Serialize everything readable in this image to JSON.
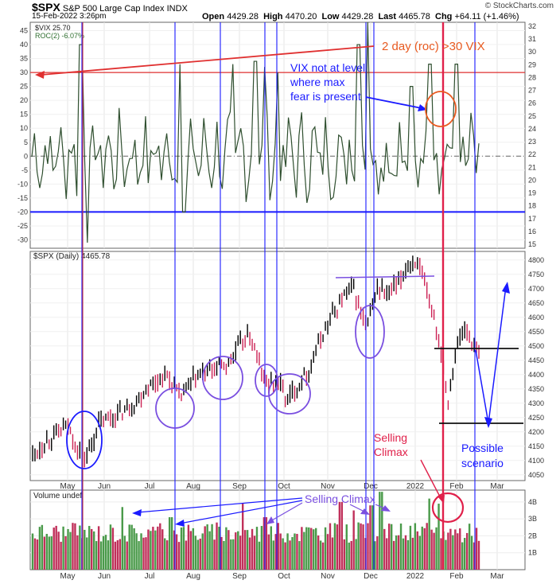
{
  "header": {
    "symbol": "$SPX",
    "name": "S&P 500 Large Cap Index",
    "exchange": "INDX",
    "date": "15-Feb-2022 3:26pm",
    "open_label": "Open",
    "open": "4429.28",
    "high_label": "High",
    "high": "4470.20",
    "low_label": "Low",
    "low": "4429.28",
    "last_label": "Last",
    "last": "4465.78",
    "chg_label": "Chg",
    "chg": "+64.11 (+1.46%)",
    "copyright": "© StockCharts.com"
  },
  "colors": {
    "roc_line": "#2f4f2f",
    "price_up": "#000000",
    "price_down": "#cc2255",
    "blue": "#1a1aff",
    "red": "#e03030",
    "purple": "#7a4fe0",
    "vol_up": "#4a9a4a",
    "vol_down": "#c0305a",
    "orange": "#e85a20"
  },
  "chart_data": [
    {
      "type": "line",
      "panel": "roc",
      "legend": [
        "$VIX 25.70",
        "ROC(2) -6.07%"
      ],
      "left_ticks": [
        45,
        40,
        35,
        30,
        25,
        20,
        15,
        10,
        5,
        0,
        -5,
        -10,
        -15,
        -20,
        -25,
        -30
      ],
      "right_ticks": [
        32,
        31,
        30,
        29,
        28,
        27,
        26,
        25,
        24,
        23,
        22,
        21,
        20,
        19,
        18,
        17,
        16,
        15
      ],
      "ylim": [
        -33,
        48
      ],
      "reference_lines": [
        {
          "value": 30,
          "color": "red"
        },
        {
          "value": -20,
          "color": "blue"
        },
        {
          "value": 0,
          "style": "dashdot"
        }
      ],
      "annotations": [
        "2 day (roc) >30 VIX",
        "VIX not at level",
        "where max",
        "fear is present"
      ],
      "peaks": [
        {
          "t": 0.11,
          "v": 40
        },
        {
          "t": 0.125,
          "v": -31
        },
        {
          "t": 0.33,
          "v": 33
        },
        {
          "t": 0.34,
          "v": -20
        },
        {
          "t": 0.45,
          "v": 33
        },
        {
          "t": 0.5,
          "v": 34
        },
        {
          "t": 0.52,
          "v": 32
        },
        {
          "t": 0.55,
          "v": 30
        },
        {
          "t": 0.73,
          "v": 40
        },
        {
          "t": 0.75,
          "v": 50
        },
        {
          "t": 0.85,
          "v": 25
        },
        {
          "t": 0.89,
          "v": 33
        },
        {
          "t": 0.95,
          "v": 33
        }
      ]
    },
    {
      "type": "line",
      "panel": "price",
      "legend": "$SPX (Daily) 4465.78",
      "right_ticks": [
        4800,
        4750,
        4700,
        4650,
        4600,
        4550,
        4500,
        4450,
        4400,
        4350,
        4300,
        4250,
        4200,
        4150,
        4100,
        4050
      ],
      "ylim": [
        4030,
        4830
      ],
      "annotations": [
        "Selling",
        "Climax",
        "Possible",
        "scenario"
      ],
      "x": [
        0,
        0.04,
        0.08,
        0.1,
        0.12,
        0.15,
        0.19,
        0.23,
        0.26,
        0.3,
        0.33,
        0.36,
        0.4,
        0.44,
        0.47,
        0.49,
        0.52,
        0.55,
        0.57,
        0.59,
        0.62,
        0.65,
        0.67,
        0.7,
        0.72,
        0.73,
        0.75,
        0.77,
        0.8,
        0.82,
        0.84,
        0.86,
        0.88,
        0.9,
        0.92,
        0.93,
        0.95,
        0.97,
        1.0
      ],
      "y": [
        4120,
        4180,
        4220,
        4140,
        4110,
        4230,
        4260,
        4300,
        4360,
        4400,
        4320,
        4380,
        4420,
        4440,
        4520,
        4530,
        4370,
        4380,
        4310,
        4350,
        4420,
        4540,
        4600,
        4680,
        4700,
        4640,
        4560,
        4700,
        4680,
        4720,
        4780,
        4800,
        4700,
        4600,
        4450,
        4300,
        4500,
        4560,
        4466
      ]
    },
    {
      "type": "bar",
      "panel": "volume",
      "legend": "Volume undef",
      "right_ticks": [
        "4B",
        "3B",
        "2B",
        "1B"
      ],
      "ylim": [
        0,
        4.7
      ],
      "annotations": [
        "Selling Climax"
      ]
    }
  ],
  "x_labels": [
    "May",
    "Jun",
    "Jul",
    "Aug",
    "Sep",
    "Oct",
    "Nov",
    "Dec",
    "2022",
    "Feb",
    "Mar"
  ]
}
